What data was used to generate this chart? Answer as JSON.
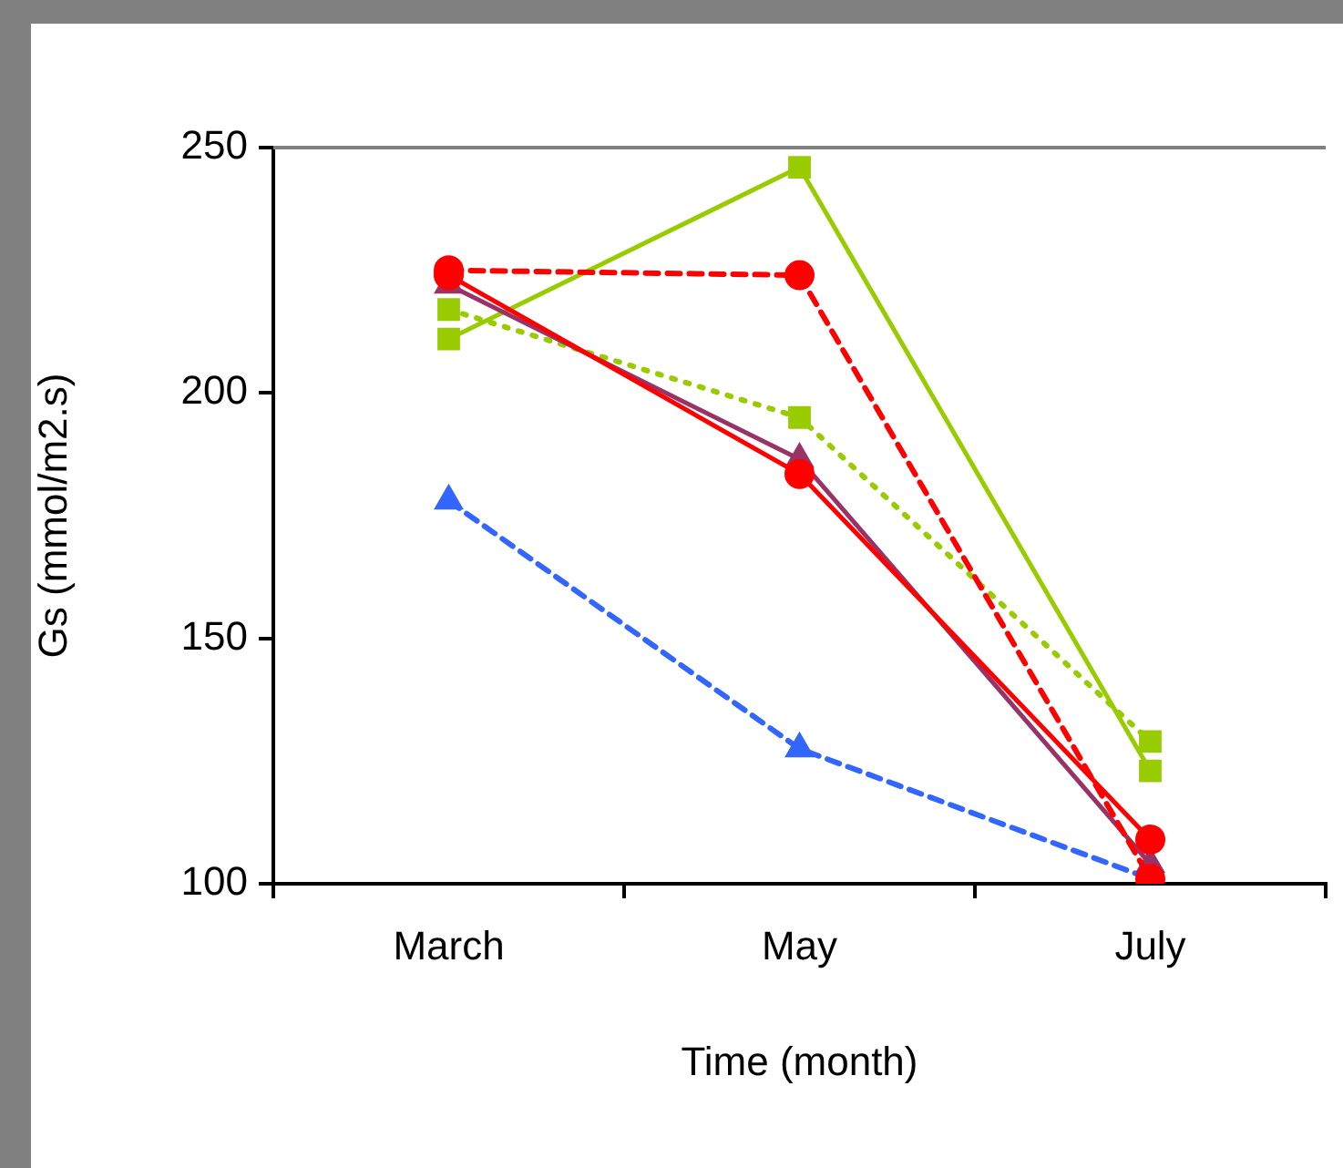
{
  "chart_data": {
    "type": "line",
    "xlabel": "Time (month)",
    "ylabel": "Gs (mmol/m2.s)",
    "categories": [
      "March",
      "May",
      "July"
    ],
    "ylim": [
      100,
      250
    ],
    "yticks": [
      100,
      150,
      200,
      250
    ],
    "grid": false,
    "legend": false,
    "series": [
      {
        "color": "#99cc00",
        "values": [
          211,
          246,
          123
        ],
        "marker": "square",
        "line_style": "solid"
      },
      {
        "color": "#99cc00",
        "values": [
          217,
          195,
          129
        ],
        "marker": "square",
        "line_style": "dotted"
      },
      {
        "color": "#3366ff",
        "values": [
          178,
          127.5,
          101
        ],
        "marker": "triangle",
        "line_style": "dashed"
      },
      {
        "color": "#993366",
        "values": [
          222,
          186.5,
          104
        ],
        "marker": "triangle",
        "line_style": "solid"
      },
      {
        "color": "#ff0000",
        "values": [
          225,
          224,
          101
        ],
        "marker": "circle",
        "line_style": "dashed"
      },
      {
        "color": "#ff0000",
        "values": [
          224,
          183.5,
          109
        ],
        "marker": "circle",
        "line_style": "solid"
      }
    ]
  }
}
